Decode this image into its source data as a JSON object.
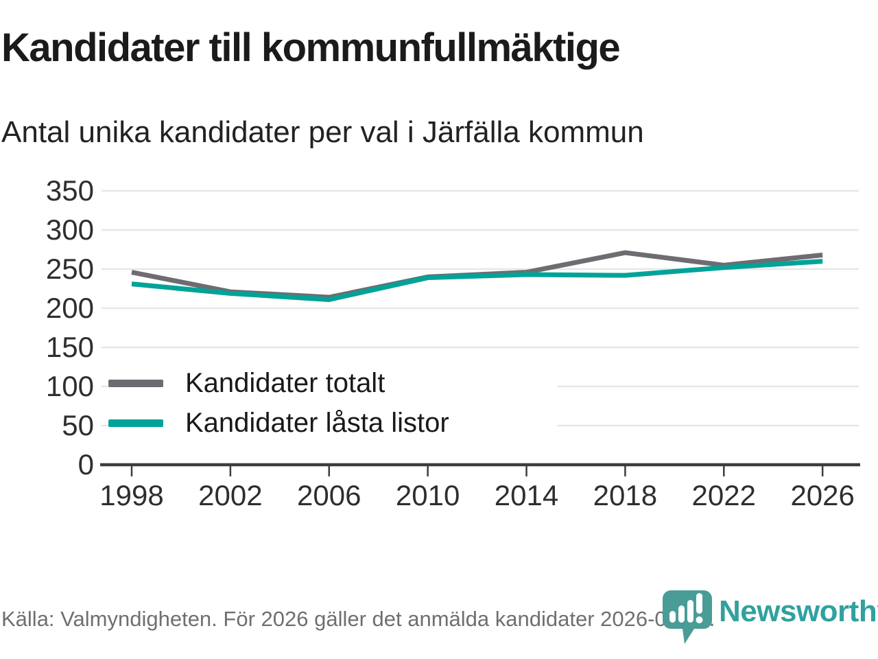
{
  "page": {
    "title": "Kandidater till kommunfullmäktige",
    "subtitle": "Antal unika kandidater per val i Järfälla kommun"
  },
  "chart_data": {
    "type": "line",
    "x": [
      1998,
      2002,
      2006,
      2010,
      2014,
      2018,
      2022,
      2026
    ],
    "series": [
      {
        "name": "Kandidater totalt",
        "color": "#6e6c71",
        "values": [
          246,
          221,
          214,
          240,
          246,
          271,
          255,
          268
        ]
      },
      {
        "name": "Kandidater låsta listor",
        "color": "#00a398",
        "values": [
          231,
          219,
          211,
          239,
          243,
          242,
          252,
          260
        ]
      }
    ],
    "title": "Kandidater till kommunfullmäktige",
    "subtitle": "Antal unika kandidater per val i Järfälla kommun",
    "xlabel": "",
    "ylabel": "",
    "ylim": [
      0,
      350
    ],
    "yticks": [
      0,
      50,
      100,
      150,
      200,
      250,
      300,
      350
    ],
    "grid": true,
    "legend_position": "inside-left"
  },
  "footer": {
    "source": "Källa: Valmyndigheten. För 2026 gäller det anmälda kandidater 2026-04-10.",
    "logo_text": "Newsworthy"
  },
  "colors": {
    "grid": "#e7e7e7",
    "axis": "#3d3d3d",
    "tick_label": "#2e2e2e",
    "logo_bubble": "#4a9c97",
    "logo_text": "#31a19f"
  }
}
